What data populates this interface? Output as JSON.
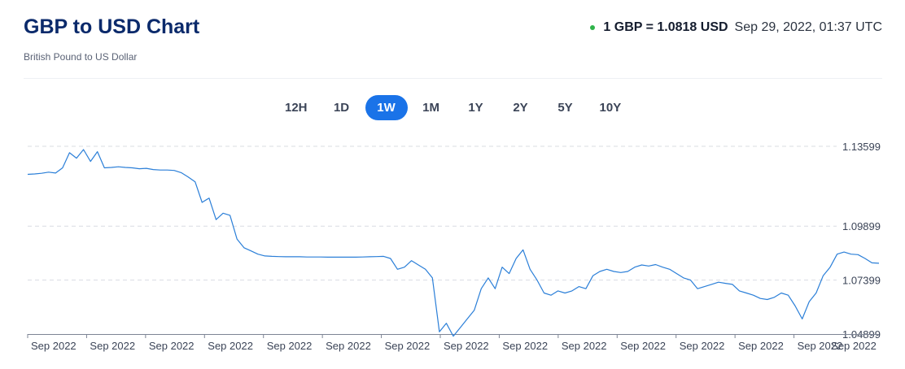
{
  "header": {
    "title": "GBP to USD Chart",
    "subtitle": "British Pound to US Dollar",
    "rate_text": "1 GBP = 1.0818 USD",
    "timestamp": "Sep 29, 2022, 01:37 UTC",
    "status_color": "#2fb34a"
  },
  "ranges": [
    {
      "label": "12H",
      "active": false
    },
    {
      "label": "1D",
      "active": false
    },
    {
      "label": "1W",
      "active": true
    },
    {
      "label": "1M",
      "active": false
    },
    {
      "label": "1Y",
      "active": false
    },
    {
      "label": "2Y",
      "active": false
    },
    {
      "label": "5Y",
      "active": false
    },
    {
      "label": "10Y",
      "active": false
    }
  ],
  "colors": {
    "accent": "#1a73e8",
    "line": "#2b7fd8",
    "grid": "#d9dce2"
  },
  "chart_data": {
    "type": "line",
    "title": "",
    "xlabel": "",
    "ylabel": "",
    "ylim": [
      1.04899,
      1.13599
    ],
    "y_ticks": [
      "1.13599",
      "1.09899",
      "1.07399",
      "1.04899"
    ],
    "y_tick_values": [
      1.13599,
      1.09899,
      1.07399,
      1.04899
    ],
    "x_ticks": [
      "Sep 2022",
      "Sep 2022",
      "Sep 2022",
      "Sep 2022",
      "Sep 2022",
      "Sep 2022",
      "Sep 2022",
      "Sep 2022",
      "Sep 2022",
      "Sep 2022",
      "Sep 2022",
      "Sep 2022",
      "Sep 2022",
      "Sep 2022",
      "Sep 2022"
    ],
    "grid": true,
    "series": [
      {
        "values": [
          1.123,
          1.1232,
          1.1235,
          1.124,
          1.1236,
          1.126,
          1.133,
          1.1305,
          1.1345,
          1.129,
          1.1335,
          1.126,
          1.1262,
          1.1265,
          1.1262,
          1.126,
          1.1256,
          1.1258,
          1.1252,
          1.125,
          1.125,
          1.1248,
          1.1238,
          1.1218,
          1.1195,
          1.11,
          1.112,
          1.102,
          1.105,
          1.104,
          1.093,
          1.089,
          1.0875,
          1.086,
          1.0852,
          1.085,
          1.0849,
          1.0848,
          1.0848,
          1.0848,
          1.0847,
          1.0847,
          1.0847,
          1.0846,
          1.0846,
          1.0846,
          1.0846,
          1.0846,
          1.0847,
          1.0848,
          1.0849,
          1.085,
          1.084,
          1.079,
          1.08,
          1.083,
          1.081,
          1.079,
          1.075,
          1.05,
          1.054,
          1.048,
          1.052,
          1.056,
          1.06,
          1.07,
          1.075,
          1.07,
          1.08,
          1.077,
          1.084,
          1.088,
          1.079,
          1.074,
          1.068,
          1.067,
          1.069,
          1.068,
          1.069,
          1.071,
          1.07,
          1.076,
          1.078,
          1.079,
          1.078,
          1.0775,
          1.078,
          1.08,
          1.081,
          1.0805,
          1.0812,
          1.08,
          1.079,
          1.077,
          1.075,
          1.074,
          1.07,
          1.071,
          1.072,
          1.073,
          1.0725,
          1.072,
          1.069,
          1.068,
          1.067,
          1.0655,
          1.065,
          1.066,
          1.068,
          1.067,
          1.062,
          1.056,
          1.064,
          1.068,
          1.076,
          1.08,
          1.086,
          1.087,
          1.086,
          1.0858,
          1.084,
          1.082,
          1.0818
        ]
      }
    ]
  }
}
